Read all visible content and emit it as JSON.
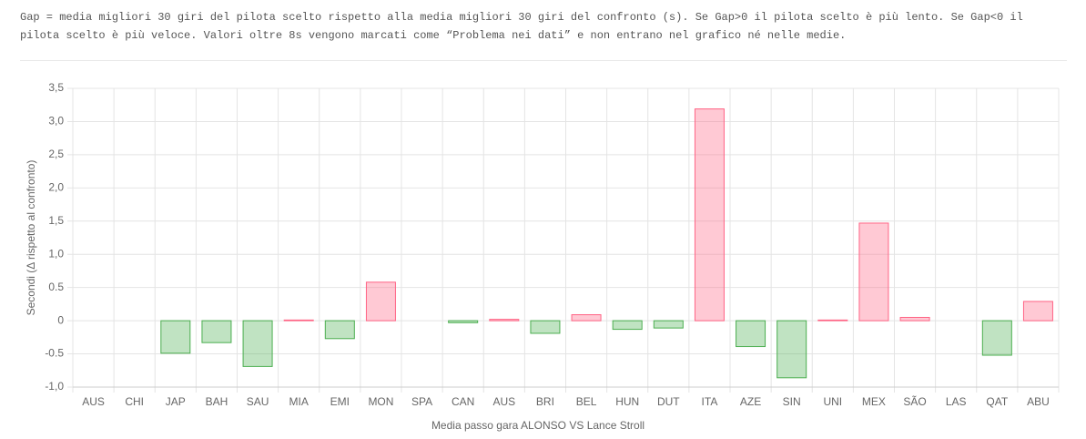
{
  "description": "Gap = media migliori 30 giri del pilota scelto rispetto alla media migliori 30 giri del confronto (s). Se Gap>0 il pilota scelto è più lento. Se Gap<0 il pilota scelto è più veloce. Valori oltre 8s vengono marcati come “Problema nei dati” e non entrano nel grafico né nelle medie.",
  "chart_data": {
    "type": "bar",
    "x_label": "Media passo gara ALONSO VS Lance Stroll",
    "y_label": "Secondi (Δ rispetto al confronto)",
    "categories": [
      "AUS",
      "CHI",
      "JAP",
      "BAH",
      "SAU",
      "MIA",
      "EMI",
      "MON",
      "SPA",
      "CAN",
      "AUS",
      "BRI",
      "BEL",
      "HUN",
      "DUT",
      "ITA",
      "AZE",
      "SIN",
      "UNI",
      "MEX",
      "SÃO",
      "LAS",
      "QAT",
      "ABU"
    ],
    "values": [
      null,
      null,
      -0.49,
      -0.33,
      -0.69,
      0.01,
      -0.27,
      0.58,
      null,
      -0.03,
      0.02,
      -0.19,
      0.09,
      -0.13,
      -0.11,
      3.19,
      -0.39,
      -0.86,
      0.01,
      1.47,
      0.05,
      null,
      -0.52,
      0.29
    ],
    "positive_color": "#ff6384",
    "negative_color": "#4bae4f",
    "ylim": [
      -1.0,
      3.5
    ],
    "yticks": [
      {
        "value": -1.0,
        "label": "-1,0"
      },
      -0.5,
      0,
      0.5,
      {
        "value": 1.0,
        "label": "1,0"
      },
      {
        "value": 1.5,
        "label": "1,5"
      },
      {
        "value": 2.0,
        "label": "2,0"
      },
      {
        "value": 2.5,
        "label": "2,5"
      },
      {
        "value": 3.0,
        "label": "3,0"
      },
      {
        "value": 3.5,
        "label": "3,5"
      }
    ],
    "grid": true
  }
}
